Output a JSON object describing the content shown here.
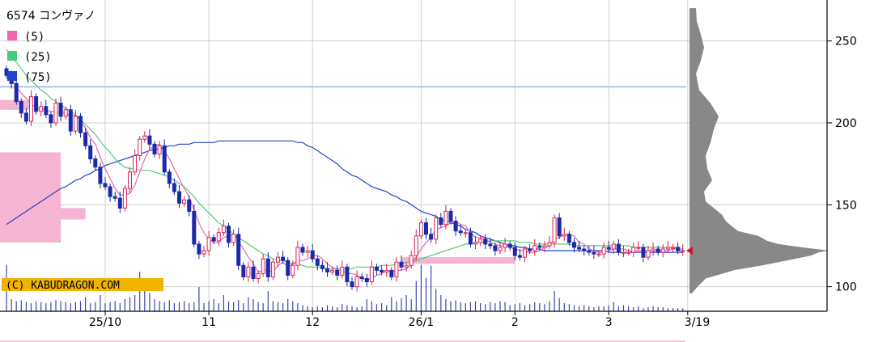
{
  "header": {
    "title": "6574 コンヴァノ"
  },
  "legend": [
    {
      "label": "(5)",
      "color": "#ee66aa"
    },
    {
      "label": "(25)",
      "color": "#44cc77"
    },
    {
      "label": "(75)",
      "color": "#2244cc"
    }
  ],
  "copyright": "(C) KABUDRAGON.COM",
  "colors": {
    "up": "#dd2255",
    "down": "#1a2aa8",
    "ma5": "#ee66aa",
    "ma25": "#55cc77",
    "ma75": "#2244cc",
    "band": "#f4b4d2",
    "hline": "#a8c8f0",
    "profile": "#888888",
    "grid": "#d0d0d0",
    "volume": "#3a46b0"
  },
  "chart_data": {
    "type": "candlestick",
    "title": "6574 コンヴァノ",
    "ylim": [
      85,
      275
    ],
    "y_ticks": [
      100,
      150,
      200,
      250
    ],
    "x_ticks": [
      {
        "label": "25/10",
        "i": 20
      },
      {
        "label": "11",
        "i": 41
      },
      {
        "label": "12",
        "i": 62
      },
      {
        "label": "26/1",
        "i": 84
      },
      {
        "label": "2",
        "i": 103
      },
      {
        "label": "3",
        "i": 122
      },
      {
        "label": "3/19",
        "i": 138
      }
    ],
    "reference_line": 222,
    "last_price": 122,
    "closes": [
      229,
      224,
      213,
      206,
      201,
      216,
      207,
      210,
      205,
      200,
      212,
      204,
      208,
      195,
      204,
      194,
      186,
      178,
      173,
      163,
      161,
      155,
      154,
      148,
      160,
      170,
      180,
      190,
      192,
      187,
      181,
      186,
      170,
      163,
      158,
      151,
      153,
      146,
      126,
      120,
      122,
      130,
      128,
      133,
      137,
      127,
      132,
      113,
      106,
      112,
      105,
      108,
      117,
      106,
      115,
      118,
      116,
      107,
      113,
      124,
      121,
      122,
      117,
      113,
      111,
      109,
      110,
      107,
      112,
      103,
      100,
      106,
      105,
      103,
      112,
      110,
      109,
      110,
      106,
      115,
      112,
      113,
      119,
      131,
      139,
      132,
      129,
      142,
      138,
      146,
      140,
      134,
      133,
      133,
      126,
      127,
      129,
      126,
      125,
      122,
      124,
      126,
      124,
      119,
      118,
      123,
      122,
      125,
      124,
      125,
      127,
      142,
      131,
      132,
      127,
      124,
      123,
      122,
      121,
      120,
      120,
      124,
      123,
      126,
      121,
      121,
      121,
      124,
      124,
      118,
      122,
      123,
      121,
      123,
      124,
      124,
      122,
      122
    ],
    "ma5": [
      229,
      227,
      222,
      218,
      215,
      212,
      209,
      208,
      208,
      207,
      207,
      206,
      206,
      204,
      205,
      201,
      197,
      191,
      187,
      179,
      172,
      166,
      160,
      156,
      156,
      157,
      162,
      170,
      178,
      184,
      186,
      187,
      183,
      178,
      172,
      166,
      160,
      155,
      147,
      139,
      133,
      129,
      127,
      127,
      130,
      131,
      132,
      128,
      123,
      118,
      114,
      109,
      110,
      110,
      109,
      113,
      115,
      112,
      114,
      116,
      116,
      117,
      119,
      119,
      117,
      114,
      112,
      110,
      110,
      108,
      108,
      107,
      105,
      104,
      105,
      107,
      108,
      110,
      109,
      110,
      110,
      111,
      113,
      118,
      123,
      127,
      130,
      135,
      136,
      137,
      139,
      140,
      138,
      137,
      133,
      130,
      130,
      129,
      127,
      126,
      125,
      125,
      124,
      123,
      122,
      122,
      121,
      121,
      122,
      124,
      125,
      129,
      130,
      132,
      132,
      131,
      127,
      126,
      123,
      122,
      121,
      121,
      122,
      123,
      123,
      123,
      122,
      122,
      122,
      122,
      122,
      122,
      122,
      122,
      122,
      123,
      123,
      122
    ],
    "ma25": [
      245,
      241,
      237,
      233,
      229,
      226,
      223,
      220,
      218,
      215,
      213,
      211,
      209,
      207,
      205,
      202,
      199,
      196,
      193,
      189,
      185,
      182,
      178,
      175,
      173,
      172,
      172,
      171,
      171,
      171,
      170,
      169,
      168,
      167,
      165,
      163,
      161,
      158,
      155,
      151,
      148,
      145,
      142,
      139,
      137,
      135,
      132,
      130,
      128,
      126,
      124,
      122,
      120,
      119,
      117,
      116,
      116,
      115,
      114,
      114,
      113,
      112,
      112,
      112,
      112,
      111,
      111,
      111,
      111,
      111,
      111,
      112,
      112,
      112,
      112,
      112,
      113,
      113,
      113,
      114,
      114,
      115,
      115,
      116,
      117,
      118,
      119,
      120,
      121,
      122,
      123,
      124,
      125,
      126,
      126,
      127,
      127,
      127,
      128,
      128,
      128,
      128,
      128,
      128,
      127,
      127,
      127,
      126,
      126,
      126,
      126,
      126,
      126,
      126,
      126,
      125,
      125,
      125,
      125,
      125,
      125,
      125,
      125,
      125,
      125,
      125,
      125,
      124,
      124,
      124,
      124,
      124,
      124,
      124,
      124,
      124,
      124,
      123
    ],
    "ma75": [
      138,
      140,
      142,
      144,
      146,
      148,
      150,
      152,
      154,
      156,
      158,
      160,
      161,
      163,
      165,
      166,
      168,
      169,
      171,
      172,
      174,
      175,
      176,
      177,
      178,
      179,
      180,
      181,
      182,
      183,
      184,
      184,
      185,
      186,
      186,
      187,
      187,
      187,
      188,
      188,
      188,
      188,
      188,
      189,
      189,
      189,
      189,
      189,
      189,
      189,
      189,
      189,
      189,
      189,
      189,
      189,
      189,
      189,
      189,
      188,
      188,
      186,
      185,
      183,
      181,
      179,
      177,
      175,
      172,
      170,
      168,
      167,
      165,
      163,
      161,
      160,
      159,
      158,
      156,
      155,
      153,
      152,
      150,
      148,
      146,
      145,
      144,
      143,
      141,
      140,
      139,
      138,
      137,
      135,
      134,
      133,
      131,
      130,
      129,
      128,
      127,
      126,
      125,
      125,
      124,
      124,
      123,
      123,
      123,
      122,
      122,
      122,
      122,
      122,
      122,
      122,
      122,
      122,
      122,
      122,
      122,
      122,
      121,
      121,
      121,
      121,
      121,
      121,
      121,
      121,
      121,
      121,
      121,
      121,
      121,
      121,
      121,
      121
    ],
    "volumes": [
      46,
      12,
      10,
      11,
      9,
      8,
      10,
      9,
      8,
      9,
      11,
      10,
      9,
      8,
      9,
      10,
      14,
      8,
      9,
      16,
      8,
      9,
      10,
      8,
      12,
      14,
      16,
      39,
      22,
      18,
      12,
      10,
      9,
      11,
      8,
      9,
      10,
      8,
      9,
      24,
      8,
      10,
      12,
      8,
      16,
      10,
      9,
      11,
      8,
      14,
      12,
      9,
      8,
      20,
      10,
      9,
      8,
      12,
      10,
      8,
      6,
      5,
      4,
      5,
      4,
      6,
      5,
      4,
      7,
      6,
      5,
      4,
      5,
      12,
      10,
      7,
      8,
      6,
      14,
      10,
      13,
      16,
      12,
      30,
      46,
      33,
      45,
      22,
      16,
      12,
      10,
      11,
      9,
      8,
      9,
      10,
      8,
      7,
      9,
      8,
      10,
      9,
      6,
      7,
      8,
      6,
      7,
      9,
      8,
      7,
      10,
      20,
      13,
      8,
      7,
      6,
      5,
      6,
      5,
      4,
      5,
      5,
      6,
      9,
      5,
      6,
      5,
      4,
      5,
      3,
      4,
      5,
      4,
      4,
      3,
      3,
      3,
      3
    ],
    "support_bands": [
      {
        "from": 141,
        "to": 148,
        "end_i": 16
      },
      {
        "from": 127,
        "to": 182,
        "end_i": 11
      }
    ],
    "volume_profile": [
      {
        "price": 96,
        "amount": 3
      },
      {
        "price": 100,
        "amount": 10
      },
      {
        "price": 105,
        "amount": 20
      },
      {
        "price": 110,
        "amount": 55
      },
      {
        "price": 113,
        "amount": 90
      },
      {
        "price": 116,
        "amount": 120
      },
      {
        "price": 119,
        "amount": 150
      },
      {
        "price": 121,
        "amount": 160
      },
      {
        "price": 122,
        "amount": 172
      },
      {
        "price": 124,
        "amount": 140
      },
      {
        "price": 126,
        "amount": 110
      },
      {
        "price": 128,
        "amount": 96
      },
      {
        "price": 131,
        "amount": 85
      },
      {
        "price": 134,
        "amount": 60
      },
      {
        "price": 137,
        "amount": 52
      },
      {
        "price": 140,
        "amount": 45
      },
      {
        "price": 144,
        "amount": 40
      },
      {
        "price": 148,
        "amount": 30
      },
      {
        "price": 152,
        "amount": 20
      },
      {
        "price": 158,
        "amount": 18
      },
      {
        "price": 165,
        "amount": 28
      },
      {
        "price": 172,
        "amount": 22
      },
      {
        "price": 180,
        "amount": 20
      },
      {
        "price": 188,
        "amount": 26
      },
      {
        "price": 196,
        "amount": 30
      },
      {
        "price": 204,
        "amount": 36
      },
      {
        "price": 212,
        "amount": 26
      },
      {
        "price": 220,
        "amount": 12
      },
      {
        "price": 230,
        "amount": 8
      },
      {
        "price": 238,
        "amount": 14
      },
      {
        "price": 246,
        "amount": 18
      },
      {
        "price": 254,
        "amount": 14
      },
      {
        "price": 262,
        "amount": 9
      },
      {
        "price": 270,
        "amount": 8
      }
    ]
  }
}
